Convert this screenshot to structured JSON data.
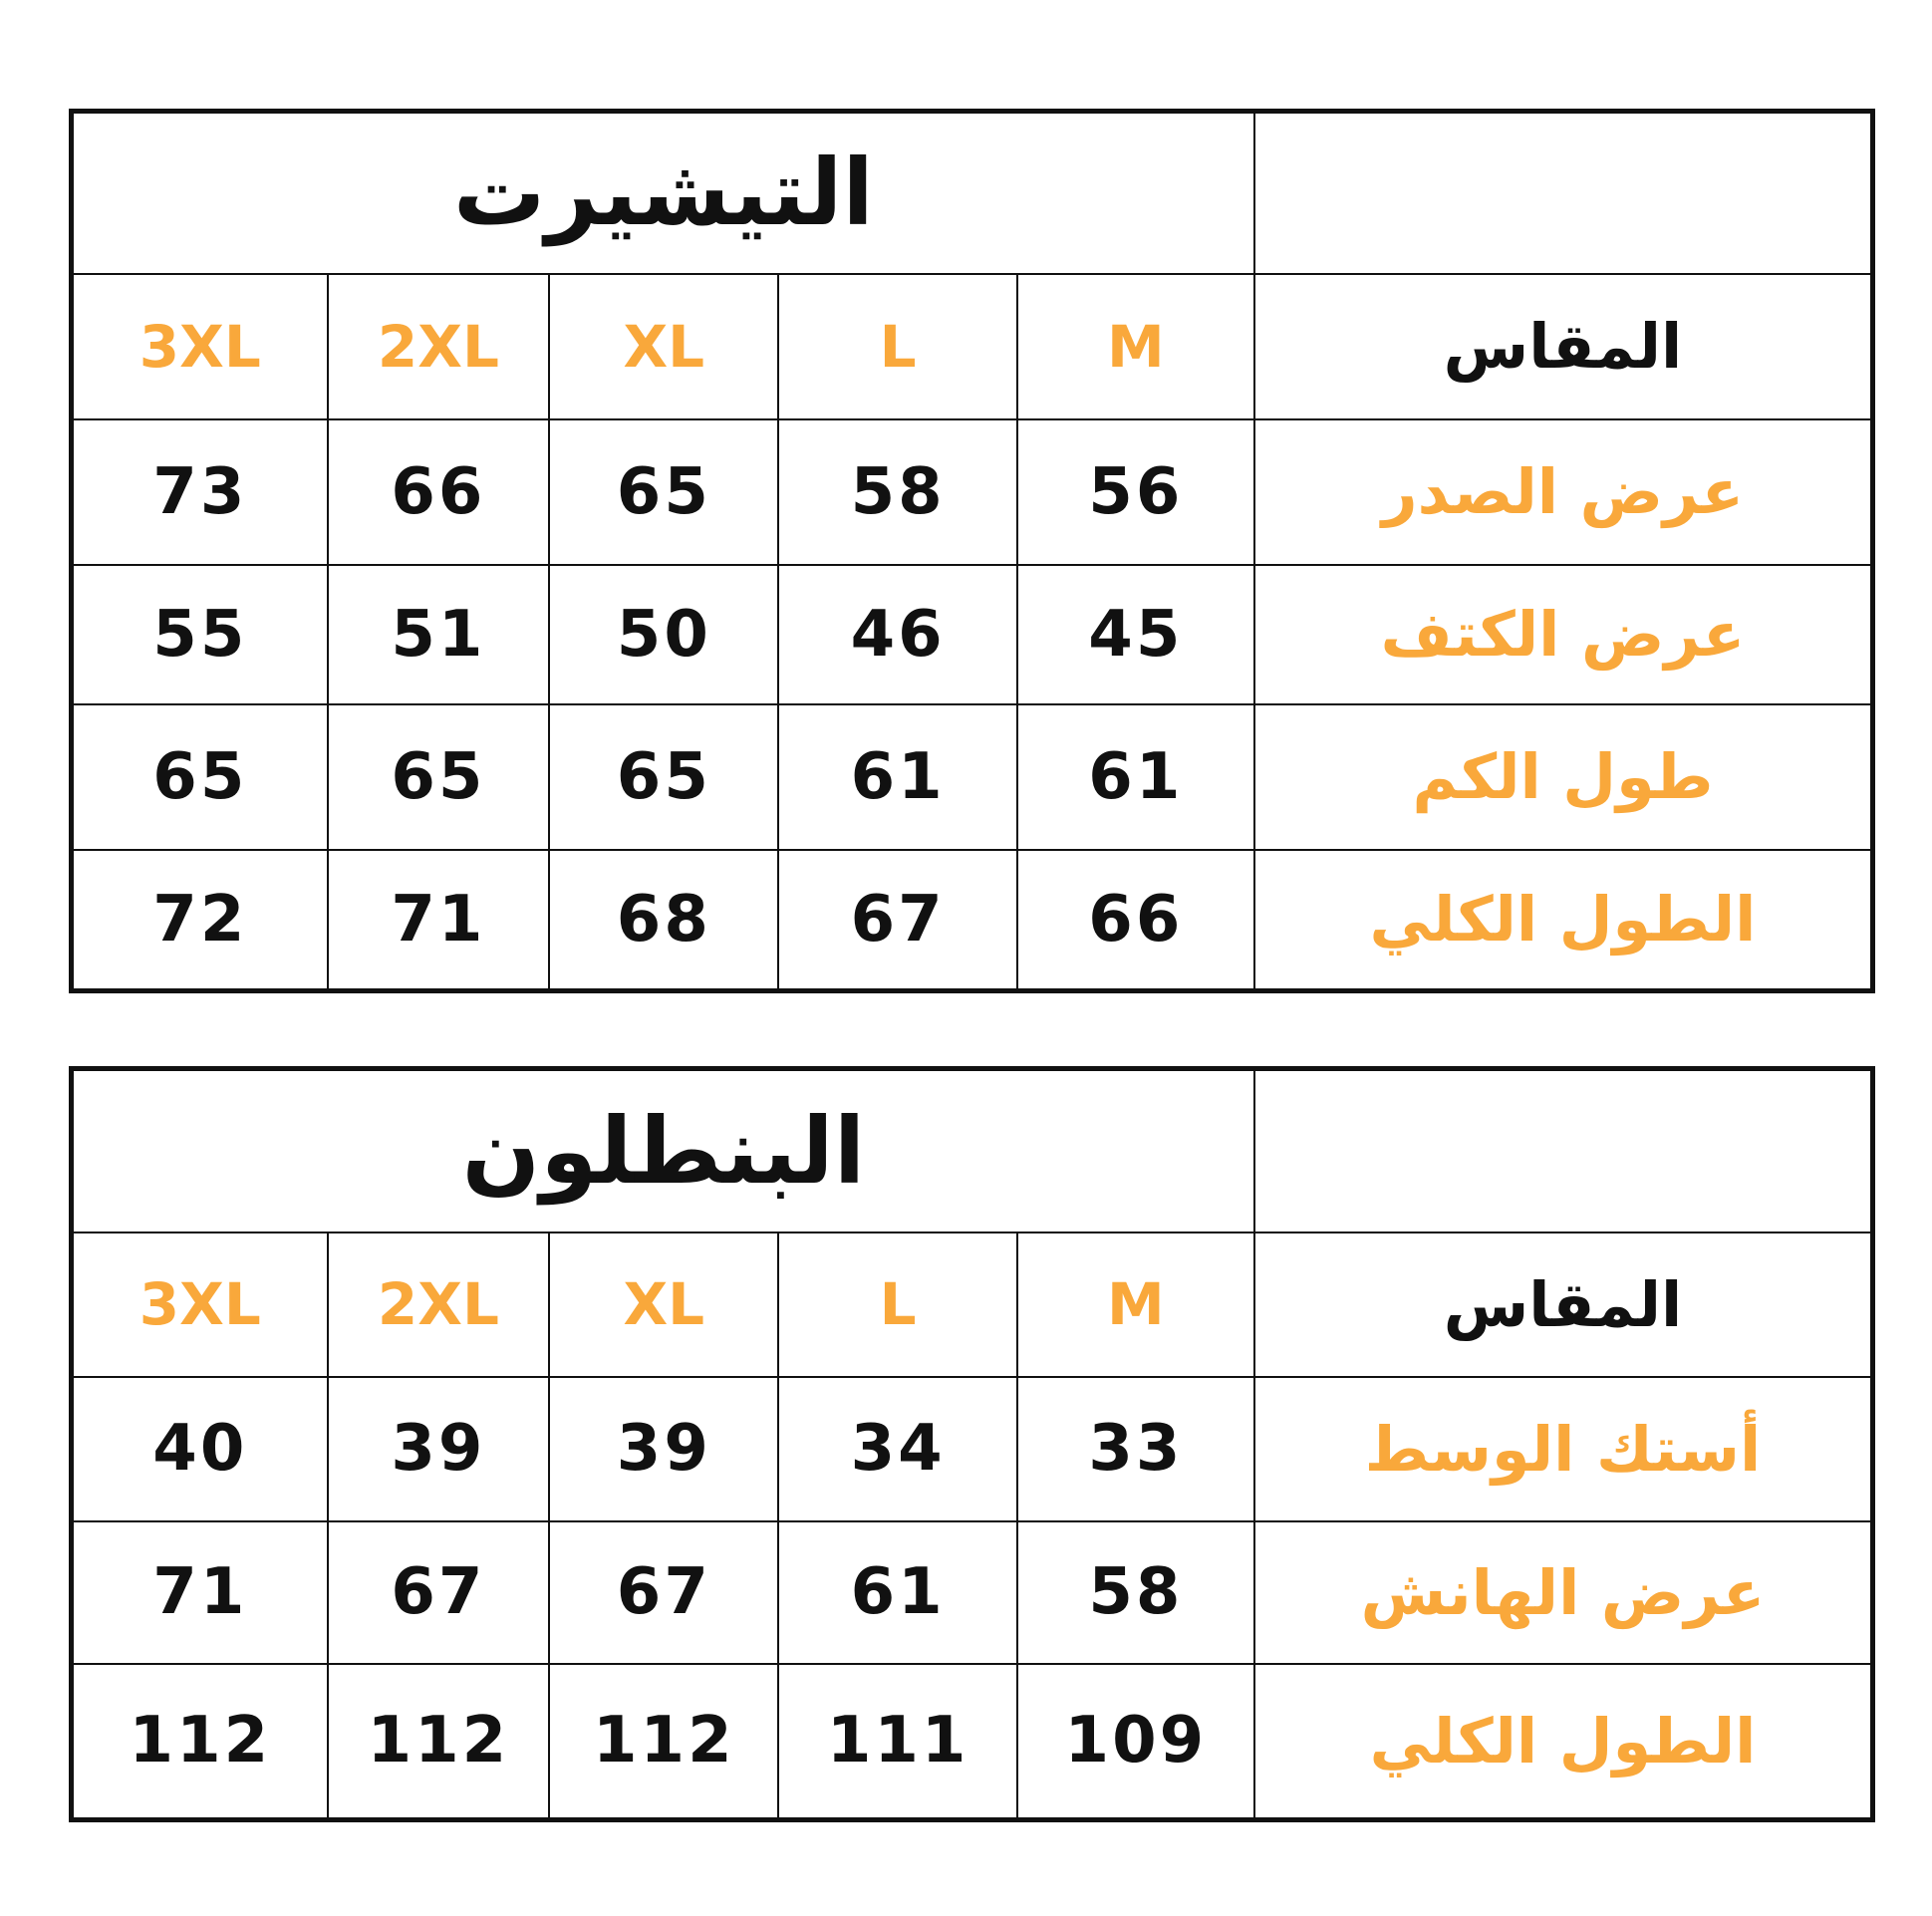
{
  "colors": {
    "accent": "#F9A83B",
    "text": "#111111"
  },
  "tables": [
    {
      "title": "التيشيرت",
      "header_label": "المقاس",
      "sizes": [
        "3XL",
        "2XL",
        "XL",
        "L",
        "M"
      ],
      "rows": [
        {
          "label": "عرض الصدر",
          "values": [
            "73",
            "66",
            "65",
            "58",
            "56"
          ]
        },
        {
          "label": "عرض الكتف",
          "values": [
            "55",
            "51",
            "50",
            "46",
            "45"
          ]
        },
        {
          "label": "طول الكم",
          "values": [
            "65",
            "65",
            "65",
            "61",
            "61"
          ]
        },
        {
          "label": "الطول الكلي",
          "values": [
            "72",
            "71",
            "68",
            "67",
            "66"
          ]
        }
      ]
    },
    {
      "title": "البنطلون",
      "header_label": "المقاس",
      "sizes": [
        "3XL",
        "2XL",
        "XL",
        "L",
        "M"
      ],
      "rows": [
        {
          "label": "أستك الوسط",
          "values": [
            "40",
            "39",
            "39",
            "34",
            "33"
          ]
        },
        {
          "label": "عرض الهانش",
          "values": [
            "71",
            "67",
            "67",
            "61",
            "58"
          ]
        },
        {
          "label": "الطول الكلي",
          "values": [
            "112",
            "112",
            "112",
            "111",
            "109"
          ]
        }
      ]
    }
  ]
}
